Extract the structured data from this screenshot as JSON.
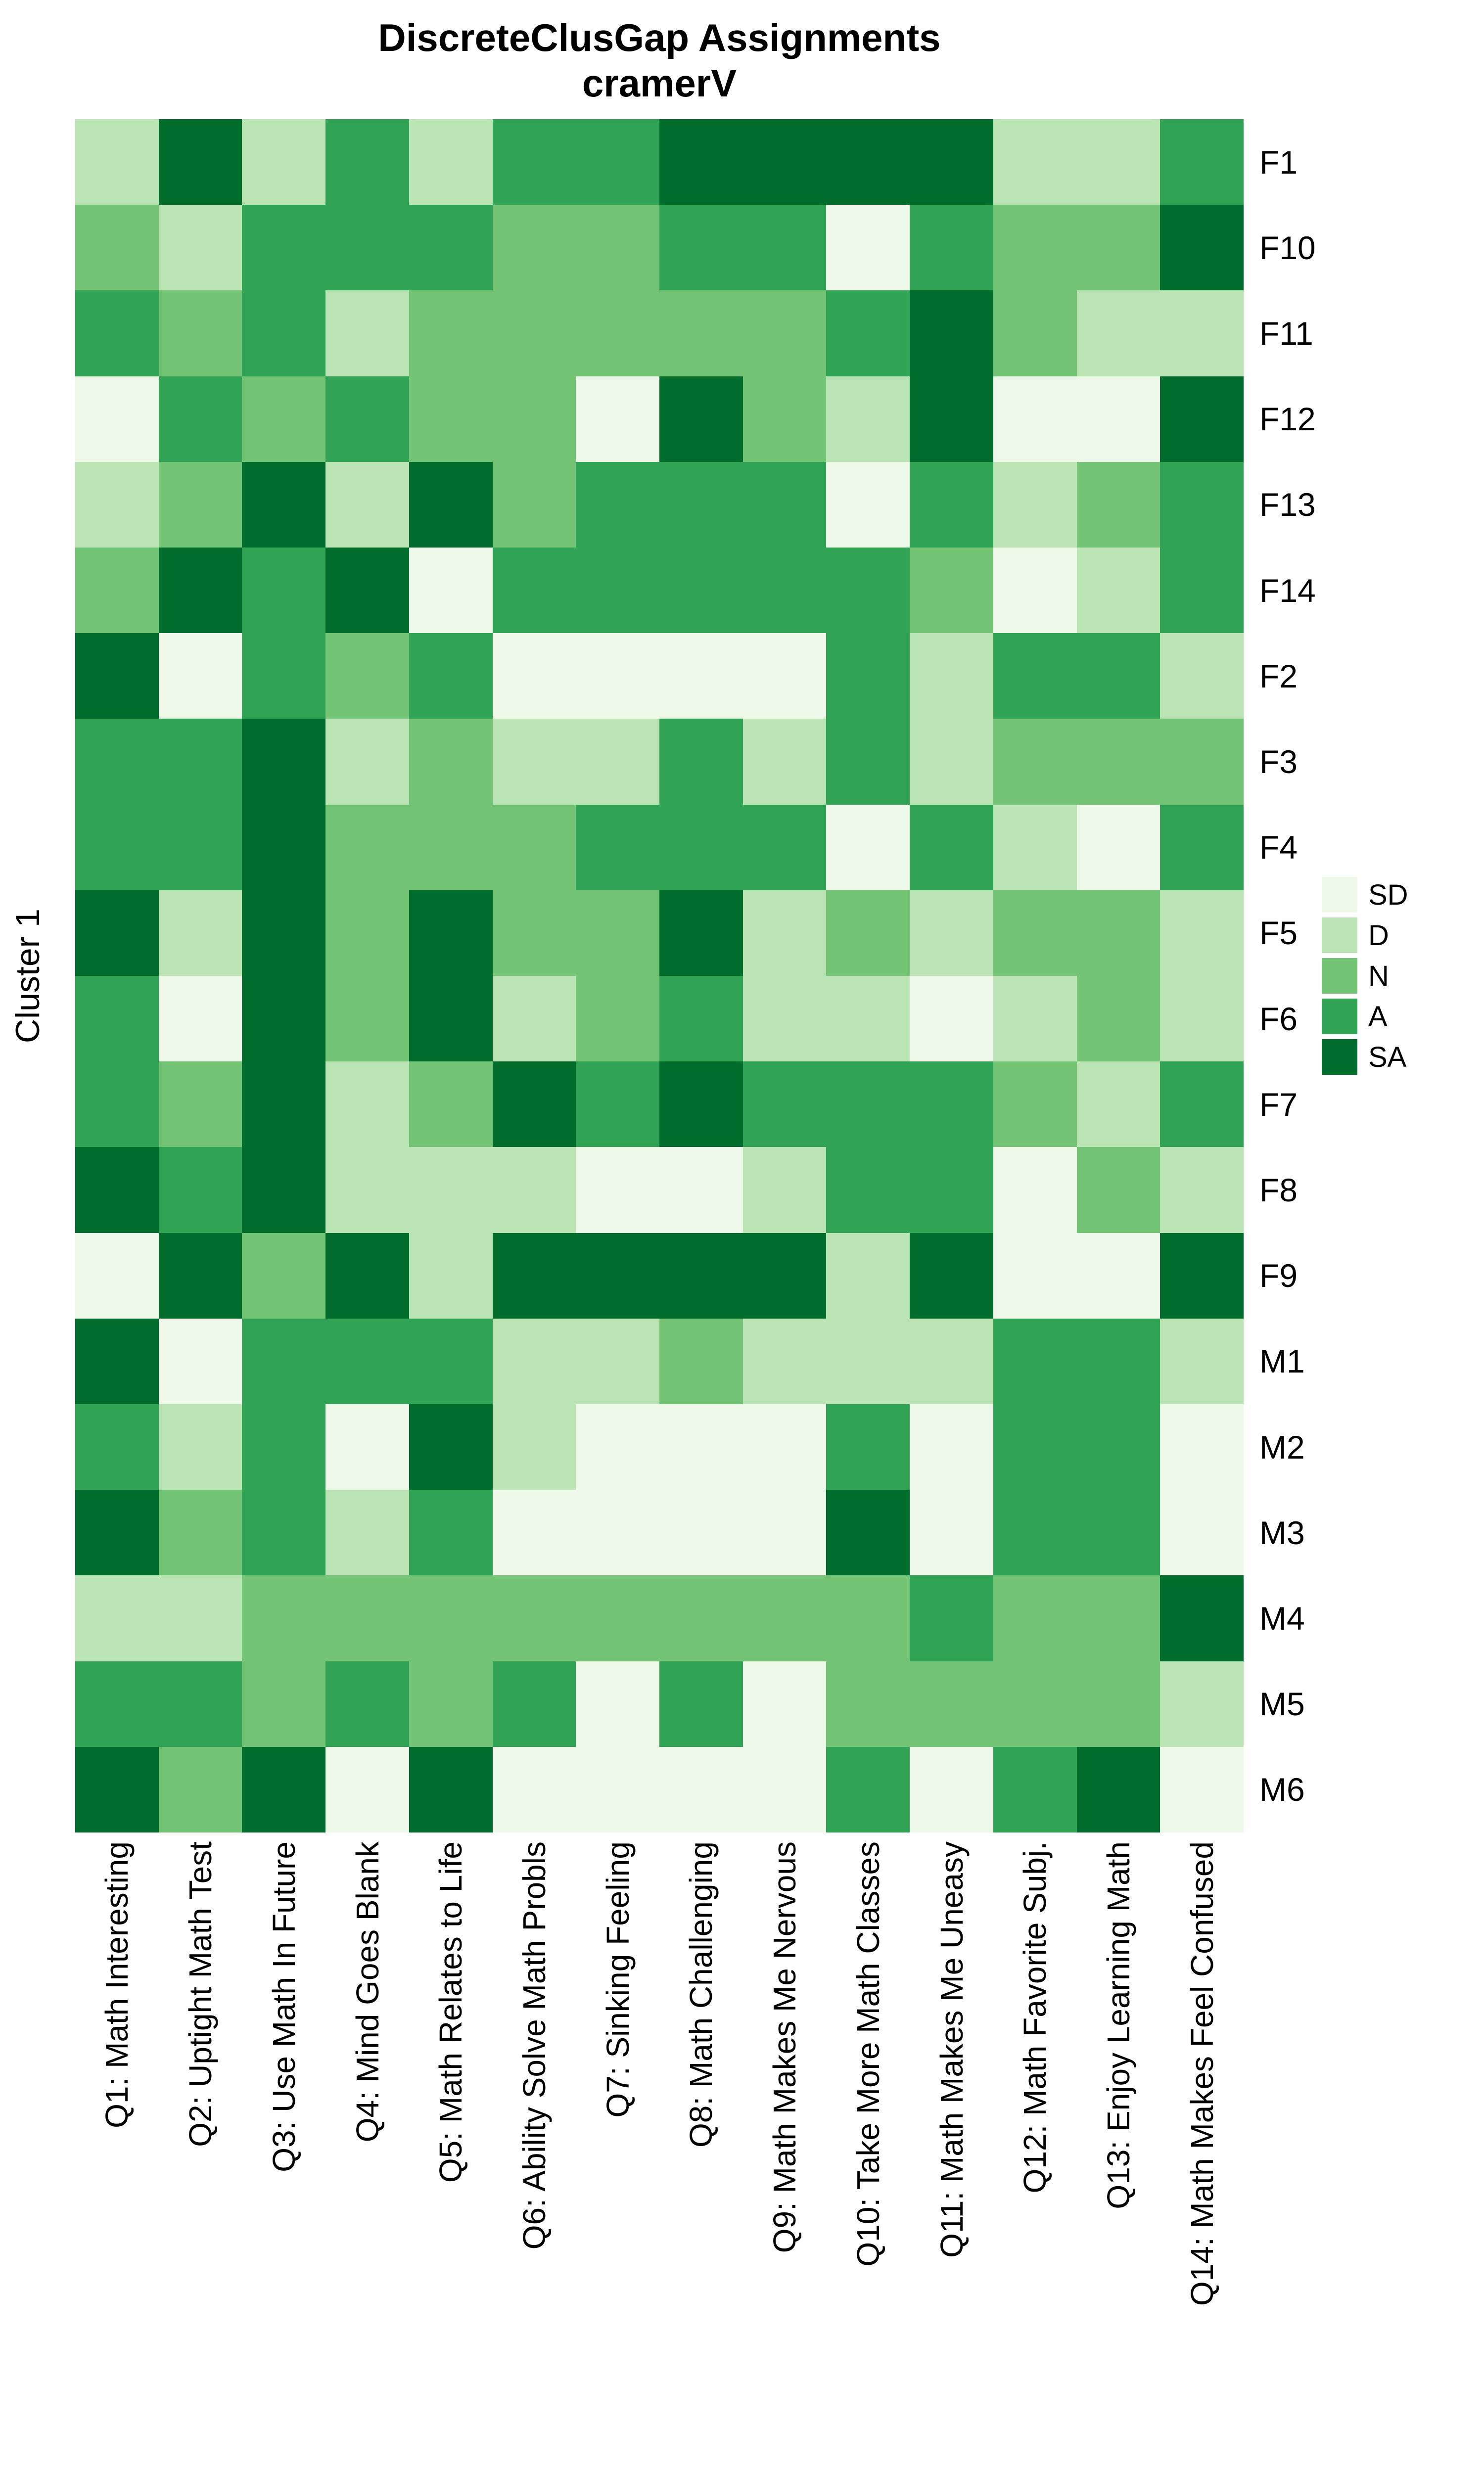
{
  "chart_data": {
    "type": "heatmap",
    "title": "DiscreteClusGap Assignments",
    "subtitle": "cramerV",
    "ylabel": "Cluster 1",
    "columns": [
      "Q1: Math Interesting",
      "Q2: Uptight Math Test",
      "Q3: Use Math In Future",
      "Q4: Mind Goes Blank",
      "Q5: Math Relates to Life",
      "Q6: Ability Solve Math Probls",
      "Q7: Sinking Feeling",
      "Q8: Math Challenging",
      "Q9: Math Makes Me Nervous",
      "Q10: Take More Math Classes",
      "Q11: Math Makes Me Uneasy",
      "Q12: Math Favorite Subj.",
      "Q13: Enjoy Learning Math",
      "Q14: Math Makes Feel Confused"
    ],
    "rows": [
      "F1",
      "F10",
      "F11",
      "F12",
      "F13",
      "F14",
      "F2",
      "F3",
      "F4",
      "F5",
      "F6",
      "F7",
      "F8",
      "F9",
      "M1",
      "M2",
      "M3",
      "M4",
      "M5",
      "M6"
    ],
    "legend": {
      "position": "right",
      "levels": [
        "SD",
        "D",
        "N",
        "A",
        "SA"
      ],
      "colors": {
        "SD": "#EDF8E9",
        "D": "#BAE4B3",
        "N": "#74C476",
        "A": "#31A354",
        "SA": "#006D2C"
      }
    },
    "values": [
      [
        "D",
        "SA",
        "D",
        "A",
        "D",
        "A",
        "A",
        "SA",
        "SA",
        "SA",
        "SA",
        "D",
        "D",
        "A"
      ],
      [
        "N",
        "D",
        "A",
        "A",
        "A",
        "N",
        "N",
        "A",
        "A",
        "SD",
        "A",
        "N",
        "N",
        "SA"
      ],
      [
        "A",
        "N",
        "A",
        "D",
        "N",
        "N",
        "N",
        "N",
        "N",
        "A",
        "SA",
        "N",
        "D",
        "D"
      ],
      [
        "SD",
        "A",
        "N",
        "A",
        "N",
        "N",
        "SD",
        "SA",
        "N",
        "D",
        "SA",
        "SD",
        "SD",
        "SA"
      ],
      [
        "D",
        "N",
        "SA",
        "D",
        "SA",
        "N",
        "A",
        "A",
        "A",
        "SD",
        "A",
        "D",
        "N",
        "A"
      ],
      [
        "N",
        "SA",
        "A",
        "SA",
        "SD",
        "A",
        "A",
        "A",
        "A",
        "A",
        "N",
        "SD",
        "D",
        "A"
      ],
      [
        "SA",
        "SD",
        "A",
        "N",
        "A",
        "SD",
        "SD",
        "SD",
        "SD",
        "A",
        "D",
        "A",
        "A",
        "D"
      ],
      [
        "A",
        "A",
        "SA",
        "D",
        "N",
        "D",
        "D",
        "A",
        "D",
        "A",
        "D",
        "N",
        "N",
        "N"
      ],
      [
        "A",
        "A",
        "SA",
        "N",
        "N",
        "N",
        "A",
        "A",
        "A",
        "SD",
        "A",
        "D",
        "SD",
        "A"
      ],
      [
        "SA",
        "D",
        "SA",
        "N",
        "SA",
        "N",
        "N",
        "SA",
        "D",
        "N",
        "D",
        "N",
        "N",
        "D"
      ],
      [
        "A",
        "SD",
        "SA",
        "N",
        "SA",
        "D",
        "N",
        "A",
        "D",
        "D",
        "SD",
        "D",
        "N",
        "D"
      ],
      [
        "A",
        "N",
        "SA",
        "D",
        "N",
        "SA",
        "A",
        "SA",
        "A",
        "A",
        "A",
        "N",
        "D",
        "A"
      ],
      [
        "SA",
        "A",
        "SA",
        "D",
        "D",
        "D",
        "SD",
        "SD",
        "D",
        "A",
        "A",
        "SD",
        "N",
        "D"
      ],
      [
        "SD",
        "SA",
        "N",
        "SA",
        "D",
        "SA",
        "SA",
        "SA",
        "SA",
        "D",
        "SA",
        "SD",
        "SD",
        "SA"
      ],
      [
        "SA",
        "SD",
        "A",
        "A",
        "A",
        "D",
        "D",
        "N",
        "D",
        "D",
        "D",
        "A",
        "A",
        "D"
      ],
      [
        "A",
        "D",
        "A",
        "SD",
        "SA",
        "D",
        "SD",
        "SD",
        "SD",
        "A",
        "SD",
        "A",
        "A",
        "SD"
      ],
      [
        "SA",
        "N",
        "A",
        "D",
        "A",
        "SD",
        "SD",
        "SD",
        "SD",
        "SA",
        "SD",
        "A",
        "A",
        "SD"
      ],
      [
        "D",
        "D",
        "N",
        "N",
        "N",
        "N",
        "N",
        "N",
        "N",
        "N",
        "A",
        "N",
        "N",
        "SA"
      ],
      [
        "A",
        "A",
        "N",
        "A",
        "N",
        "A",
        "SD",
        "A",
        "SD",
        "N",
        "N",
        "N",
        "N",
        "D"
      ],
      [
        "SA",
        "N",
        "SA",
        "SD",
        "SA",
        "SD",
        "SD",
        "SD",
        "SD",
        "A",
        "SD",
        "A",
        "SA",
        "SD"
      ]
    ]
  }
}
